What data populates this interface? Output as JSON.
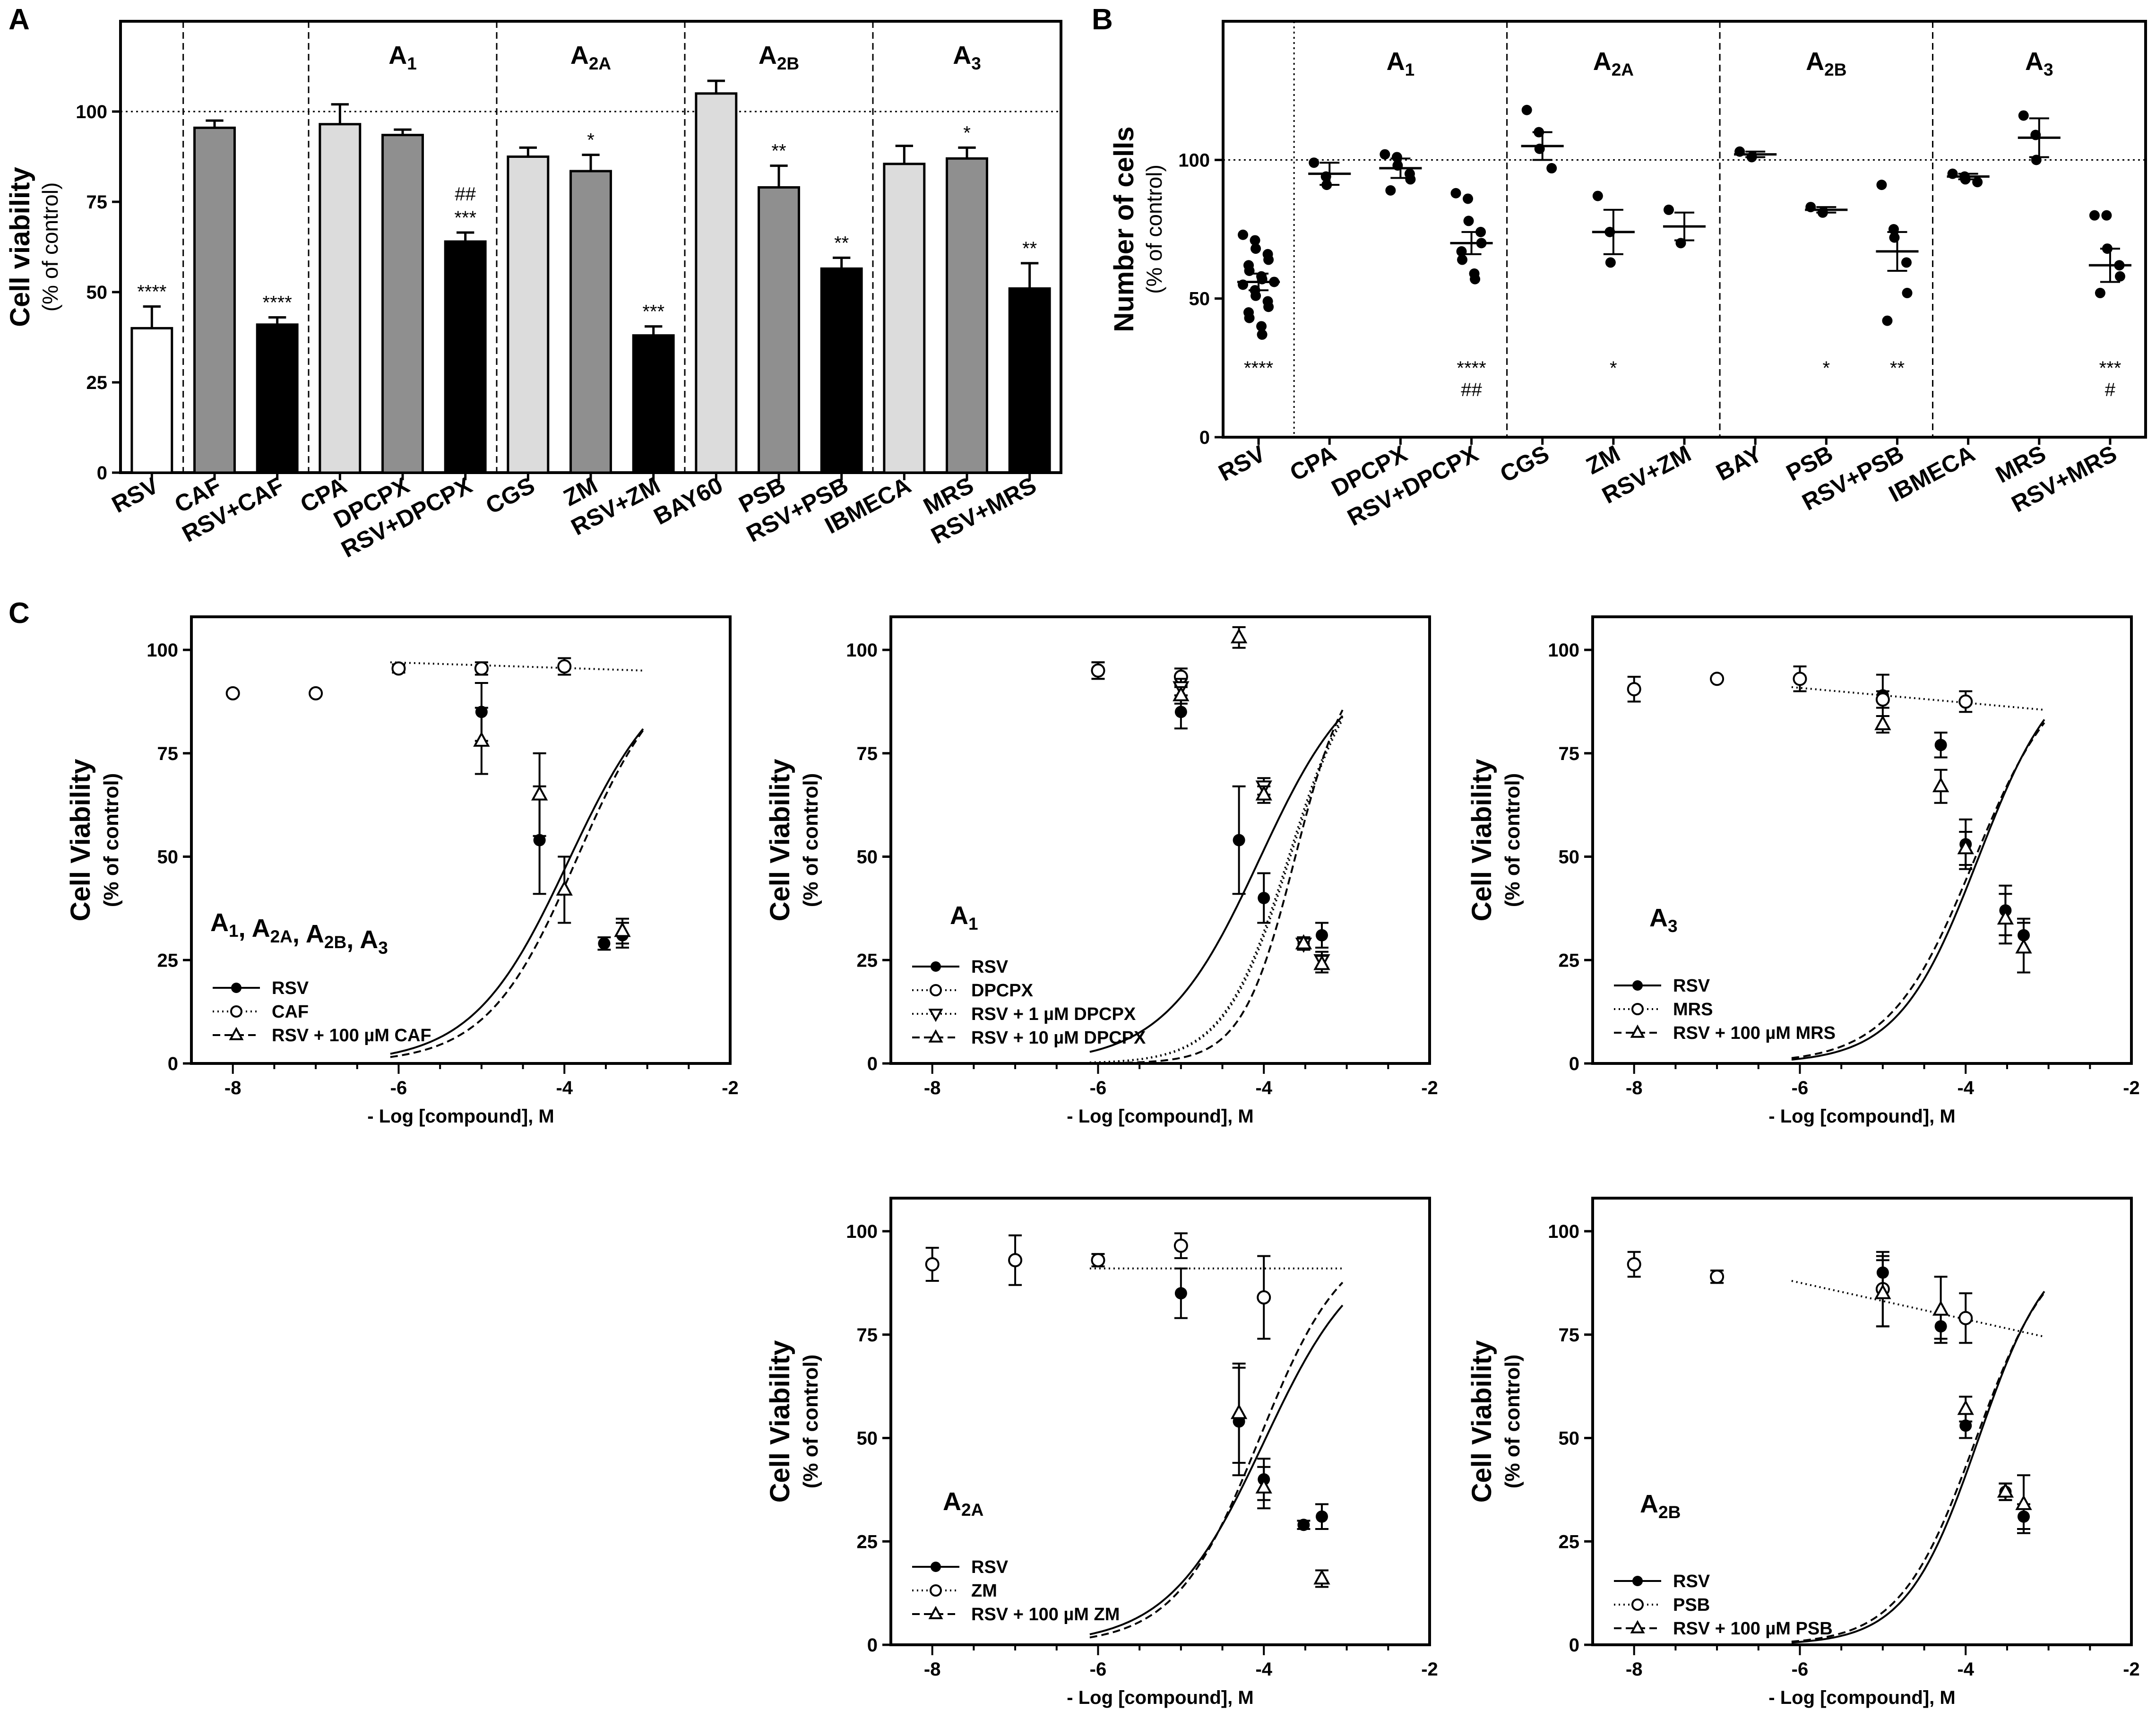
{
  "colors": {
    "white": "#ffffff",
    "light": "#dcdcdc",
    "medium": "#8f8f8f",
    "black": "#000000"
  },
  "chart_data": [
    {
      "id": "A",
      "panel": "A",
      "type": "bar",
      "ylabel": "Cell viability",
      "ylabel_sub": "(% of control)",
      "ylim": [
        0,
        125
      ],
      "yticks": [
        "0",
        "25",
        "50",
        "75",
        "100"
      ],
      "reference_line": 100,
      "groups": [
        "",
        "",
        "A1",
        "A2A",
        "A2B",
        "A3"
      ],
      "group_labels": [
        {
          "base": "",
          "sub": ""
        },
        {
          "base": "",
          "sub": ""
        },
        {
          "base": "A",
          "sub": "1"
        },
        {
          "base": "A",
          "sub": "2A"
        },
        {
          "base": "A",
          "sub": "2B"
        },
        {
          "base": "A",
          "sub": "3"
        }
      ],
      "categories": [
        "RSV",
        "CAF",
        "RSV+CAF",
        "CPA",
        "DPCPX",
        "RSV+DPCPX",
        "CGS",
        "ZM",
        "RSV+ZM",
        "BAY60",
        "PSB",
        "RSV+PSB",
        "IBMECA",
        "MRS",
        "RSV+MRS"
      ],
      "values": [
        40,
        95.5,
        41,
        96.5,
        93.5,
        64,
        87.5,
        83.5,
        38,
        105,
        79,
        56.5,
        85.5,
        87,
        51
      ],
      "errors": [
        6,
        2,
        2,
        5.5,
        1.5,
        2.5,
        2.5,
        4.5,
        2.5,
        3.5,
        6,
        3,
        5,
        3,
        7
      ],
      "fills": [
        "white",
        "medium",
        "black",
        "light",
        "medium",
        "black",
        "light",
        "medium",
        "black",
        "light",
        "medium",
        "black",
        "light",
        "medium",
        "black"
      ],
      "stars": [
        "****",
        "",
        "****",
        "",
        "",
        "***",
        "",
        "*",
        "***",
        "",
        "**",
        "**",
        "",
        "*",
        "**"
      ],
      "hash": [
        "",
        "",
        "",
        "",
        "",
        "##",
        "",
        "",
        "",
        "",
        "",
        "",
        "",
        "",
        ""
      ]
    },
    {
      "id": "B",
      "panel": "B",
      "type": "scatter",
      "ylabel": "Number of cells",
      "ylabel_sub": "(% of control)",
      "ylim": [
        0,
        150
      ],
      "yticks": [
        "0",
        "50",
        "100"
      ],
      "reference_line": 100,
      "group_labels": [
        {
          "base": "",
          "sub": ""
        },
        {
          "base": "A",
          "sub": "1"
        },
        {
          "base": "A",
          "sub": "2A"
        },
        {
          "base": "A",
          "sub": "2B"
        },
        {
          "base": "A",
          "sub": "3"
        }
      ],
      "categories": [
        "RSV",
        "CPA",
        "DPCPX",
        "RSV+DPCPX",
        "CGS",
        "ZM",
        "RSV+ZM",
        "BAY",
        "PSB",
        "RSV+PSB",
        "IBMECA",
        "MRS",
        "RSV+MRS"
      ],
      "means": [
        56,
        95,
        97,
        70,
        105,
        74,
        76,
        102,
        82,
        67,
        94,
        108,
        62
      ],
      "sems": [
        3,
        4,
        3.5,
        4,
        5,
        8,
        5,
        1,
        1,
        7,
        1,
        7,
        6
      ],
      "points": [
        [
          73,
          71,
          68,
          66,
          64,
          62,
          60,
          58,
          57,
          56,
          55,
          53,
          51,
          49,
          47,
          45,
          43,
          40,
          37
        ],
        [
          99,
          94,
          91
        ],
        [
          102,
          101,
          98,
          95,
          93,
          89
        ],
        [
          88,
          86,
          78,
          74,
          70,
          67,
          64,
          59,
          57
        ],
        [
          118,
          110,
          104,
          97
        ],
        [
          87,
          74,
          63
        ],
        [
          82,
          70
        ],
        [
          103,
          101
        ],
        [
          83,
          81
        ],
        [
          91,
          75,
          72,
          63,
          52,
          42
        ],
        [
          95,
          94,
          93,
          92
        ],
        [
          116,
          109,
          100
        ],
        [
          80,
          80,
          68,
          62,
          58,
          52
        ]
      ],
      "stars": [
        "****",
        "",
        "",
        "****",
        "",
        "*",
        "",
        "",
        "*",
        "**",
        "",
        "",
        "***"
      ],
      "hash": [
        "",
        "",
        "",
        "##",
        "",
        "",
        "",
        "",
        "",
        "",
        "",
        "",
        "#"
      ]
    },
    {
      "id": "C1",
      "panel": "C",
      "type": "line",
      "title": "A1, A2A, A2B, A3",
      "title_parts": [
        {
          "base": "A",
          "sub": "1"
        },
        {
          "base": ", A",
          "sub": "2A"
        },
        {
          "base": ", A",
          "sub": "2B"
        },
        {
          "base": ", A",
          "sub": "3"
        }
      ],
      "ylabel": "Cell Viability",
      "ylabel_sub": "(% of control)",
      "xlabel": "- Log [compound], M",
      "xlim": [
        -8.5,
        -2
      ],
      "ylim": [
        0,
        108
      ],
      "xticks": [
        "-8",
        "-6",
        "-4",
        "-2"
      ],
      "yticks": [
        "0",
        "25",
        "50",
        "75",
        "100"
      ],
      "series": [
        {
          "name": "RSV",
          "marker": "filled-circle",
          "line": "solid",
          "x": [
            -5,
            -4.3,
            -3.52,
            -3.3
          ],
          "y": [
            85,
            54,
            29,
            31
          ],
          "err": [
            7,
            13,
            1.5,
            3
          ],
          "fit": {
            "top": 98,
            "bottom": 0,
            "logIC50": -3.95,
            "hill": 0.75,
            "x0": -6.1,
            "x1": -3.05
          }
        },
        {
          "name": "CAF",
          "marker": "open-circle",
          "line": "dotted",
          "x": [
            -8,
            -7,
            -6,
            -5,
            -4
          ],
          "y": [
            89.5,
            89.5,
            95.5,
            95.5,
            96
          ],
          "err": [
            0,
            0,
            1,
            1.5,
            2
          ],
          "fit": {
            "top": 97,
            "bottom": 95,
            "logIC50": -5,
            "hill": 0,
            "x0": -6.1,
            "x1": -3.05
          }
        },
        {
          "name": "RSV + 100 µM CAF",
          "marker": "open-triangle",
          "line": "dashed",
          "x": [
            -5,
            -4.3,
            -4,
            -3.3
          ],
          "y": [
            78,
            65,
            42,
            32
          ],
          "err": [
            8,
            10,
            8,
            3
          ],
          "fit": {
            "top": 99,
            "bottom": 0,
            "logIC50": -3.85,
            "hill": 0.8,
            "x0": -6.1,
            "x1": -3.05
          }
        }
      ]
    },
    {
      "id": "C2",
      "panel": "C",
      "type": "line",
      "title": "A1",
      "title_parts": [
        {
          "base": "A",
          "sub": "1"
        }
      ],
      "ylabel": "Cell Viability",
      "ylabel_sub": "(% of control)",
      "xlabel": "- Log [compound], M",
      "xlim": [
        -8.5,
        -2
      ],
      "ylim": [
        0,
        108
      ],
      "xticks": [
        "-8",
        "-6",
        "-4",
        "-2"
      ],
      "yticks": [
        "0",
        "25",
        "50",
        "75",
        "100"
      ],
      "series": [
        {
          "name": "RSV",
          "marker": "filled-circle",
          "line": "solid",
          "x": [
            -6,
            -5,
            -4.3,
            -4,
            -3.52,
            -3.3
          ],
          "y": [
            95,
            85,
            54,
            40,
            29,
            31
          ],
          "err": [
            2,
            4,
            13,
            6,
            1.5,
            3
          ],
          "fit": {
            "top": 99,
            "bottom": 0,
            "logIC50": -4.05,
            "hill": 0.75,
            "x0": -6.1,
            "x1": -3.05
          }
        },
        {
          "name": "DPCPX",
          "marker": "open-circle",
          "line": "dotted",
          "x": [
            -6,
            -5
          ],
          "y": [
            95,
            93.5
          ],
          "err": [
            2,
            2
          ],
          "fit": {
            "top": 100,
            "bottom": 0,
            "logIC50": -3.7,
            "hill": 1.1,
            "x0": -6.1,
            "x1": -3.05
          }
        },
        {
          "name": "RSV + 1 µM DPCPX",
          "marker": "open-down-triangle",
          "line": "dotted",
          "x": [
            -5,
            -4,
            -3.52,
            -3.3
          ],
          "y": [
            91,
            67,
            29,
            25
          ],
          "err": [
            2,
            2,
            1.5,
            2
          ],
          "fit": {
            "top": 100,
            "bottom": 0,
            "logIC50": -3.68,
            "hill": 1.1,
            "x0": -6.1,
            "x1": -3.05
          }
        },
        {
          "name": "RSV + 10 µM DPCPX",
          "marker": "open-triangle",
          "line": "dashed",
          "x": [
            -5,
            -4.3,
            -4,
            -3.52,
            -3.3
          ],
          "y": [
            89,
            103,
            65,
            29,
            24
          ],
          "err": [
            2,
            2.5,
            2,
            1.5,
            2
          ],
          "fit": {
            "top": 100,
            "bottom": 0,
            "logIC50": -3.62,
            "hill": 1.35,
            "x0": -6.1,
            "x1": -3.05
          }
        }
      ]
    },
    {
      "id": "C3",
      "panel": "C",
      "type": "line",
      "title": "A3",
      "title_parts": [
        {
          "base": "A",
          "sub": "3"
        }
      ],
      "ylabel": "Cell Viability",
      "ylabel_sub": "(% of control)",
      "xlabel": "- Log [compound], M",
      "xlim": [
        -8.5,
        -2
      ],
      "ylim": [
        0,
        108
      ],
      "xticks": [
        "-8",
        "-6",
        "-4",
        "-2"
      ],
      "yticks": [
        "0",
        "25",
        "50",
        "75",
        "100"
      ],
      "series": [
        {
          "name": "RSV",
          "marker": "filled-circle",
          "line": "solid",
          "x": [
            -5,
            -4.3,
            -4,
            -3.52,
            -3.3
          ],
          "y": [
            89,
            77,
            53,
            37,
            31
          ],
          "err": [
            5,
            3,
            6,
            6,
            4
          ],
          "fit": {
            "top": 99,
            "bottom": 0,
            "logIC50": -3.85,
            "hill": 0.9,
            "x0": -6.1,
            "x1": -3.05
          }
        },
        {
          "name": "MRS",
          "marker": "open-circle",
          "line": "dotted",
          "x": [
            -8,
            -7,
            -6,
            -5,
            -4
          ],
          "y": [
            90.5,
            93,
            93,
            88,
            87.5
          ],
          "err": [
            3,
            0,
            3,
            2,
            2.5
          ],
          "fit": {
            "top": 91,
            "bottom": 85.5,
            "logIC50": -5,
            "hill": 0,
            "x0": -6.1,
            "x1": -3.05
          }
        },
        {
          "name": "RSV + 100 µM MRS",
          "marker": "open-triangle",
          "line": "dashed",
          "x": [
            -5,
            -4.3,
            -4,
            -3.52,
            -3.3
          ],
          "y": [
            82,
            67,
            52,
            35,
            28
          ],
          "err": [
            2,
            4,
            4,
            6,
            6
          ],
          "fit": {
            "top": 98,
            "bottom": 0,
            "logIC50": -3.9,
            "hill": 0.85,
            "x0": -6.1,
            "x1": -3.05
          }
        }
      ]
    },
    {
      "id": "C4",
      "panel": "C",
      "type": "line",
      "title": "A2A",
      "title_parts": [
        {
          "base": "A",
          "sub": "2A"
        }
      ],
      "ylabel": "Cell Viability",
      "ylabel_sub": "(% of control)",
      "xlabel": "- Log [compound], M",
      "xlim": [
        -8.5,
        -2
      ],
      "ylim": [
        0,
        108
      ],
      "xticks": [
        "-8",
        "-6",
        "-4",
        "-2"
      ],
      "yticks": [
        "0",
        "25",
        "50",
        "75",
        "100"
      ],
      "series": [
        {
          "name": "RSV",
          "marker": "filled-circle",
          "line": "solid",
          "x": [
            -5,
            -4.3,
            -4,
            -3.52,
            -3.3
          ],
          "y": [
            85,
            54,
            40,
            29,
            31
          ],
          "err": [
            6,
            13,
            5,
            1,
            3
          ],
          "fit": {
            "top": 98,
            "bottom": 0,
            "logIC50": -4.0,
            "hill": 0.75,
            "x0": -6.1,
            "x1": -3.05
          }
        },
        {
          "name": "ZM",
          "marker": "open-circle",
          "line": "dotted",
          "x": [
            -8,
            -7,
            -6,
            -5,
            -4
          ],
          "y": [
            92,
            93,
            93,
            96.5,
            84
          ],
          "err": [
            4,
            6,
            1.5,
            3,
            10
          ],
          "fit": {
            "top": 91,
            "bottom": 91,
            "logIC50": -5,
            "hill": 0,
            "x0": -6.1,
            "x1": -3.05
          }
        },
        {
          "name": "RSV + 100 µM ZM",
          "marker": "open-triangle",
          "line": "dashed",
          "x": [
            -4.3,
            -4,
            -3.3
          ],
          "y": [
            56,
            38,
            16
          ],
          "err": [
            12,
            5,
            2
          ],
          "fit": {
            "top": 100,
            "bottom": 0,
            "logIC50": -4.05,
            "hill": 0.85,
            "x0": -6.1,
            "x1": -3.05
          }
        }
      ]
    },
    {
      "id": "C5",
      "panel": "C",
      "type": "line",
      "title": "A2B",
      "title_parts": [
        {
          "base": "A",
          "sub": "2B"
        }
      ],
      "ylabel": "Cell Viability",
      "ylabel_sub": "(% of control)",
      "xlabel": "- Log [compound], M",
      "xlim": [
        -8.5,
        -2
      ],
      "ylim": [
        0,
        108
      ],
      "xticks": [
        "-8",
        "-6",
        "-4",
        "-2"
      ],
      "yticks": [
        "0",
        "25",
        "50",
        "75",
        "100"
      ],
      "series": [
        {
          "name": "RSV",
          "marker": "filled-circle",
          "line": "solid",
          "x": [
            -5,
            -4.3,
            -4,
            -3.52,
            -3.3
          ],
          "y": [
            90,
            77,
            53,
            37,
            31
          ],
          "err": [
            4,
            3,
            3,
            2,
            3
          ],
          "fit": {
            "top": 99,
            "bottom": 0,
            "logIC50": -3.85,
            "hill": 1.0,
            "x0": -6.1,
            "x1": -3.05
          }
        },
        {
          "name": "PSB",
          "marker": "open-circle",
          "line": "dotted",
          "x": [
            -8,
            -7,
            -5,
            -4
          ],
          "y": [
            92,
            89,
            86,
            79
          ],
          "err": [
            3,
            1.5,
            9,
            6
          ],
          "fit": {
            "top": 88,
            "bottom": 74.5,
            "logIC50": -5,
            "hill": 0,
            "x0": -6.1,
            "x1": -3.05
          }
        },
        {
          "name": "RSV + 100 µM PSB",
          "marker": "open-triangle",
          "line": "dashed",
          "x": [
            -5,
            -4.3,
            -4,
            -3.52,
            -3.3
          ],
          "y": [
            85,
            81,
            57,
            37,
            34
          ],
          "err": [
            8,
            8,
            3,
            2,
            7
          ],
          "fit": {
            "top": 99,
            "bottom": 0,
            "logIC50": -3.88,
            "hill": 0.95,
            "x0": -6.1,
            "x1": -3.05
          }
        }
      ]
    }
  ]
}
